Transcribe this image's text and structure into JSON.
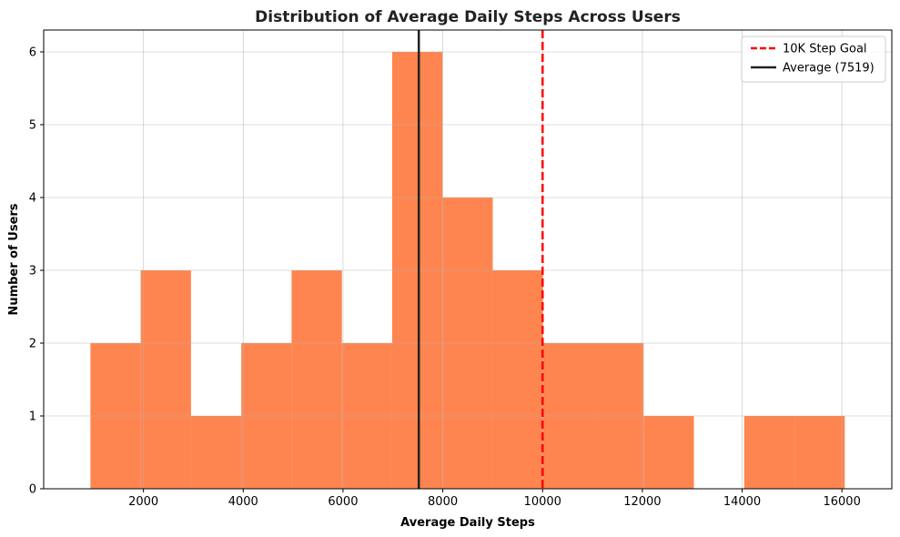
{
  "chart_data": {
    "type": "bar",
    "title": "Distribution of Average Daily Steps Across Users",
    "xlabel": "Average Daily Steps",
    "ylabel": "Number of Users",
    "xlim": [
      0,
      17000
    ],
    "ylim": [
      0,
      6.3
    ],
    "grid": true,
    "legend_position": "top-right",
    "bin_edges": [
      937,
      1945,
      2953,
      3961,
      4969,
      5977,
      6985,
      7993,
      9001,
      10009,
      11017,
      12025,
      13033,
      14041,
      15049,
      16057
    ],
    "counts": [
      2,
      3,
      1,
      2,
      3,
      2,
      6,
      4,
      3,
      2,
      2,
      1,
      0,
      1,
      1
    ],
    "bar_color": "#FF8550",
    "x_ticks": [
      2000,
      4000,
      6000,
      8000,
      10000,
      12000,
      14000,
      16000
    ],
    "y_ticks": [
      0,
      1,
      2,
      3,
      4,
      5,
      6
    ],
    "reference_lines": [
      {
        "name": "10K Step Goal",
        "x": 10000,
        "color": "#FF0000",
        "style": "dashed"
      },
      {
        "name": "Average (7519)",
        "x": 7519,
        "color": "#222222",
        "style": "solid"
      }
    ]
  }
}
